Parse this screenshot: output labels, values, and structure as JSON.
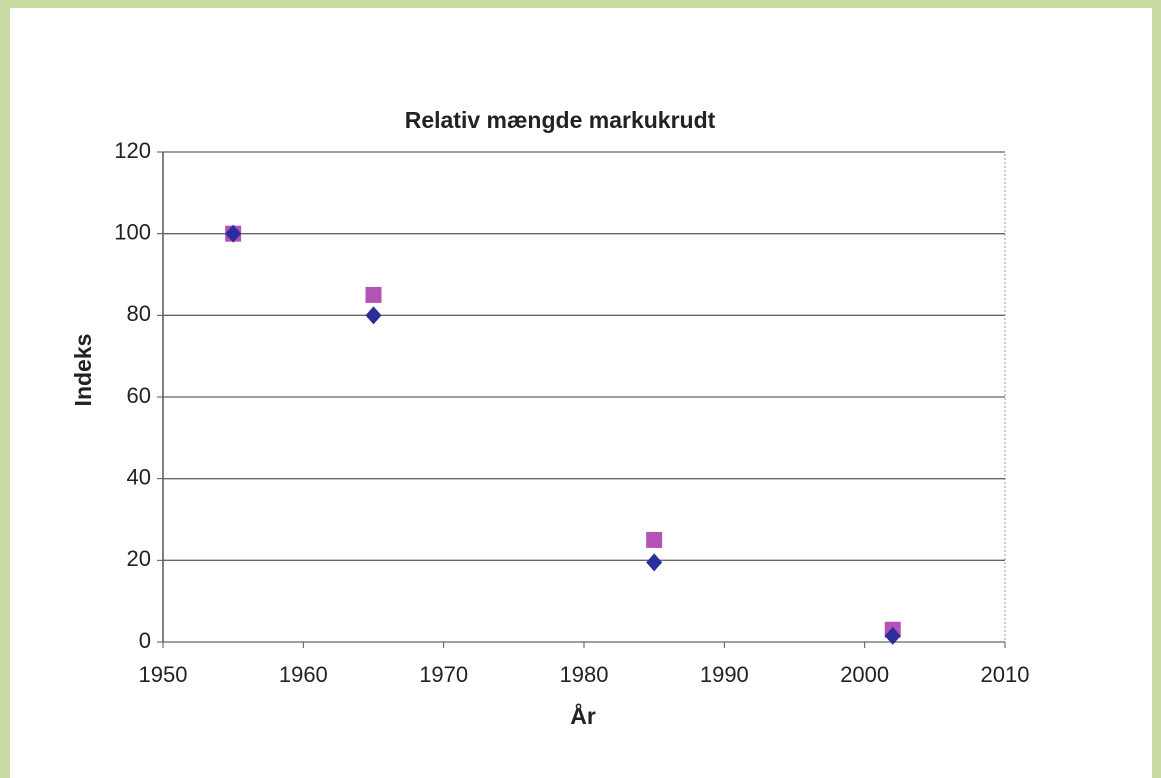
{
  "chart_data": {
    "type": "scatter",
    "title": "Relativ mængde markukrudt",
    "xlabel": "År",
    "ylabel": "Indeks",
    "series": [
      {
        "color": "#f0f0f0",
        "marker": "square",
        "x": [
          1955,
          1965,
          1985,
          2002
        ],
        "values": [
          100,
          85,
          25,
          3
        ]
      },
      {
        "color": "#f0f0f0",
        "marker": "diamond",
        "x": [
          1955,
          1965,
          1985,
          2002
        ],
        "values": [
          100,
          80,
          19.5,
          1.5
        ]
      }
    ],
    "xlim": [
      1950,
      2010
    ],
    "xticks": [
      1950,
      1960,
      1970,
      1980,
      1990,
      2000,
      2010
    ],
    "ylim": [
      0,
      120
    ],
    "yticks": [
      0,
      20,
      40,
      60,
      80,
      100,
      120
    ],
    "grid": true
  }
}
